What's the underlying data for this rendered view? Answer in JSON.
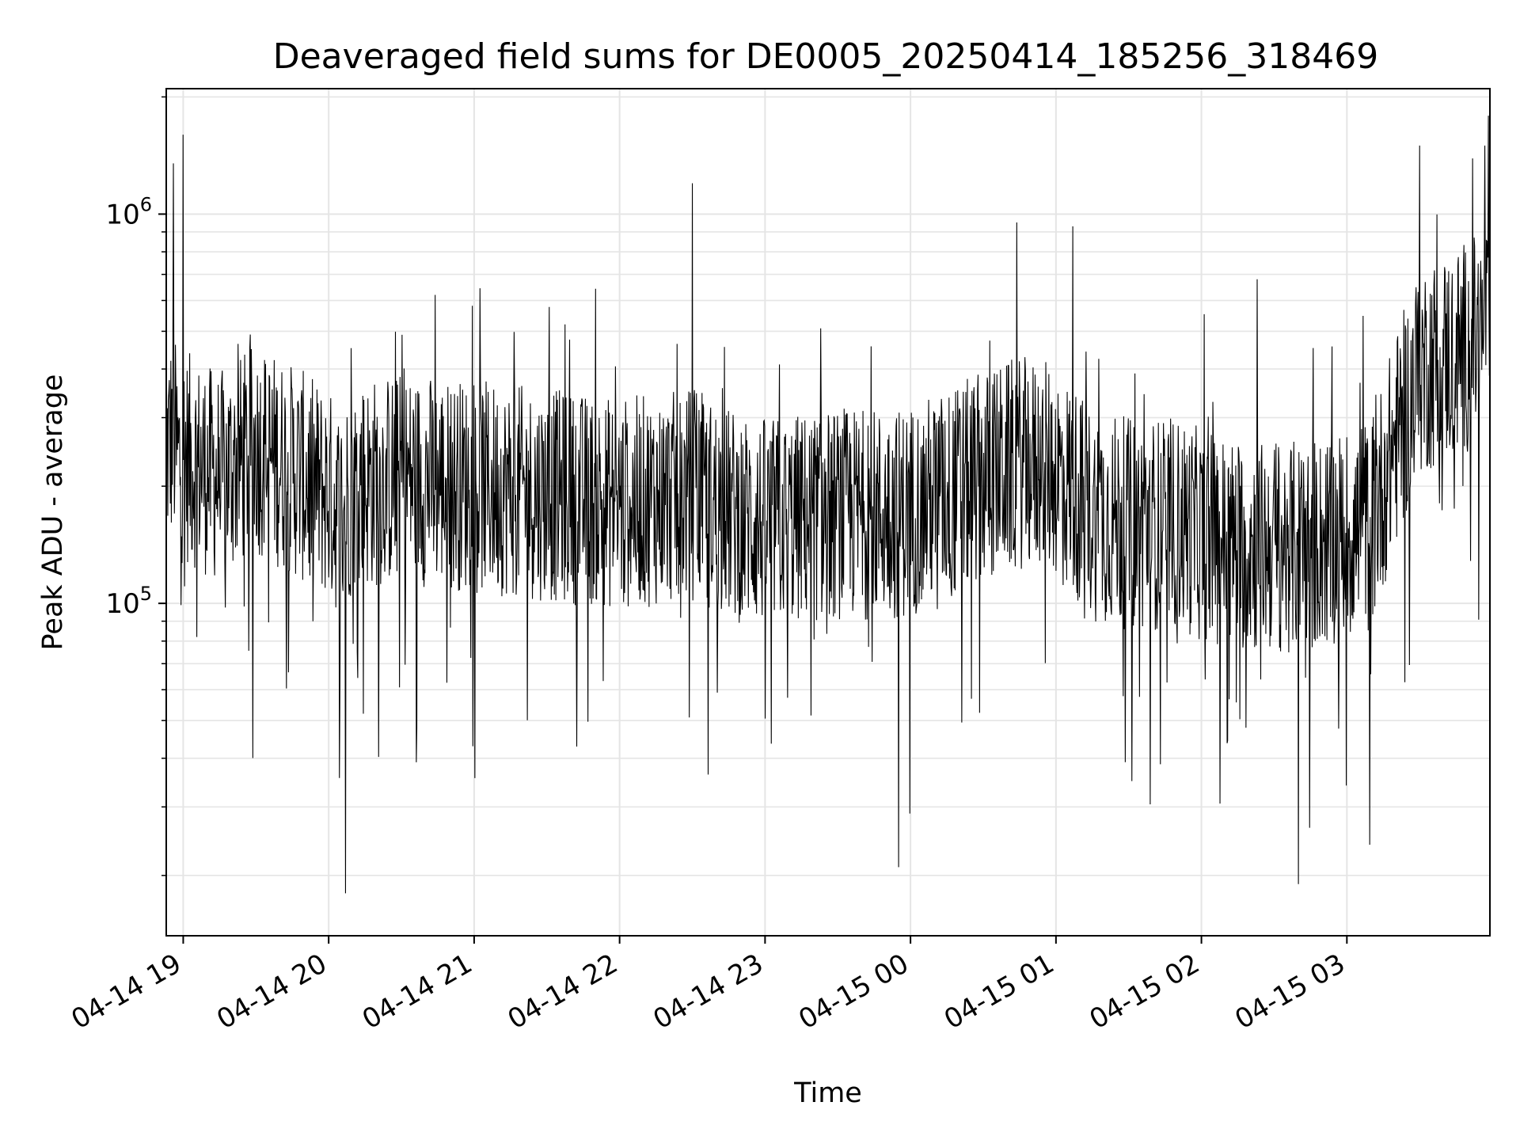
{
  "chart_data": {
    "type": "line",
    "title": "Deaveraged field sums for DE0005_20250414_185256_318469",
    "xlabel": "Time",
    "ylabel": "Peak ADU - average",
    "yscale": "log",
    "grid": true,
    "grid_minor": true,
    "line_color": "#000000",
    "grid_color": "#e5e5e5",
    "xlim": [
      "2025-04-14 18:53",
      "2025-04-15 03:59"
    ],
    "ylim": [
      14000,
      2100000
    ],
    "x_ticks": [
      {
        "value": "2025-04-14 19:00",
        "label": "04-14 19"
      },
      {
        "value": "2025-04-14 20:00",
        "label": "04-14 20"
      },
      {
        "value": "2025-04-14 21:00",
        "label": "04-14 21"
      },
      {
        "value": "2025-04-14 22:00",
        "label": "04-14 22"
      },
      {
        "value": "2025-04-14 23:00",
        "label": "04-14 23"
      },
      {
        "value": "2025-04-15 00:00",
        "label": "04-15 00"
      },
      {
        "value": "2025-04-15 01:00",
        "label": "04-15 01"
      },
      {
        "value": "2025-04-15 02:00",
        "label": "04-15 02"
      },
      {
        "value": "2025-04-15 03:00",
        "label": "04-15 03"
      }
    ],
    "y_ticks": [
      {
        "value": 100000,
        "base": "10",
        "exp": "5"
      },
      {
        "value": 1000000,
        "base": "10",
        "exp": "6"
      }
    ],
    "series": [
      {
        "x": [
          "2025-04-14 18:53",
          "2025-04-14 18:56",
          "2025-04-14 18:58",
          "2025-04-14 19:00",
          "2025-04-14 19:15",
          "2025-04-14 19:30",
          "2025-04-14 19:45",
          "2025-04-14 20:00",
          "2025-04-14 20:05",
          "2025-04-14 20:10",
          "2025-04-14 20:30",
          "2025-04-14 21:00",
          "2025-04-14 21:30",
          "2025-04-14 22:00",
          "2025-04-14 22:30",
          "2025-04-14 22:45",
          "2025-04-14 23:00",
          "2025-04-14 23:30",
          "2025-04-14 23:55",
          "2025-04-15 00:15",
          "2025-04-15 00:30",
          "2025-04-15 00:45",
          "2025-04-15 01:00",
          "2025-04-15 01:15",
          "2025-04-15 01:30",
          "2025-04-15 01:50",
          "2025-04-15 02:00",
          "2025-04-15 02:20",
          "2025-04-15 02:40",
          "2025-04-15 03:00",
          "2025-04-15 03:10",
          "2025-04-15 03:20",
          "2025-04-15 03:30",
          "2025-04-15 03:45",
          "2025-04-15 03:59"
        ],
        "y": [
          250000,
          270000,
          230000,
          240000,
          210000,
          250000,
          220000,
          190000,
          170000,
          200000,
          210000,
          200000,
          190000,
          180000,
          190000,
          170000,
          160000,
          170000,
          170000,
          190000,
          210000,
          230000,
          220000,
          170000,
          160000,
          160000,
          150000,
          140000,
          140000,
          150000,
          160000,
          260000,
          400000,
          440000,
          500000
        ],
        "spikes": [
          {
            "x": "2025-04-14 18:56",
            "y": 1350000
          },
          {
            "x": "2025-04-14 19:00",
            "y": 1600000
          },
          {
            "x": "2025-04-14 20:07",
            "y": 18000
          },
          {
            "x": "2025-04-14 22:30",
            "y": 1200000
          },
          {
            "x": "2025-04-14 23:55",
            "y": 21000
          },
          {
            "x": "2025-04-15 01:07",
            "y": 930000
          },
          {
            "x": "2025-04-15 02:23",
            "y": 680000
          },
          {
            "x": "2025-04-15 02:40",
            "y": 19000
          },
          {
            "x": "2025-04-15 03:30",
            "y": 1500000
          },
          {
            "x": "2025-04-15 03:57",
            "y": 1500000
          }
        ]
      }
    ]
  }
}
